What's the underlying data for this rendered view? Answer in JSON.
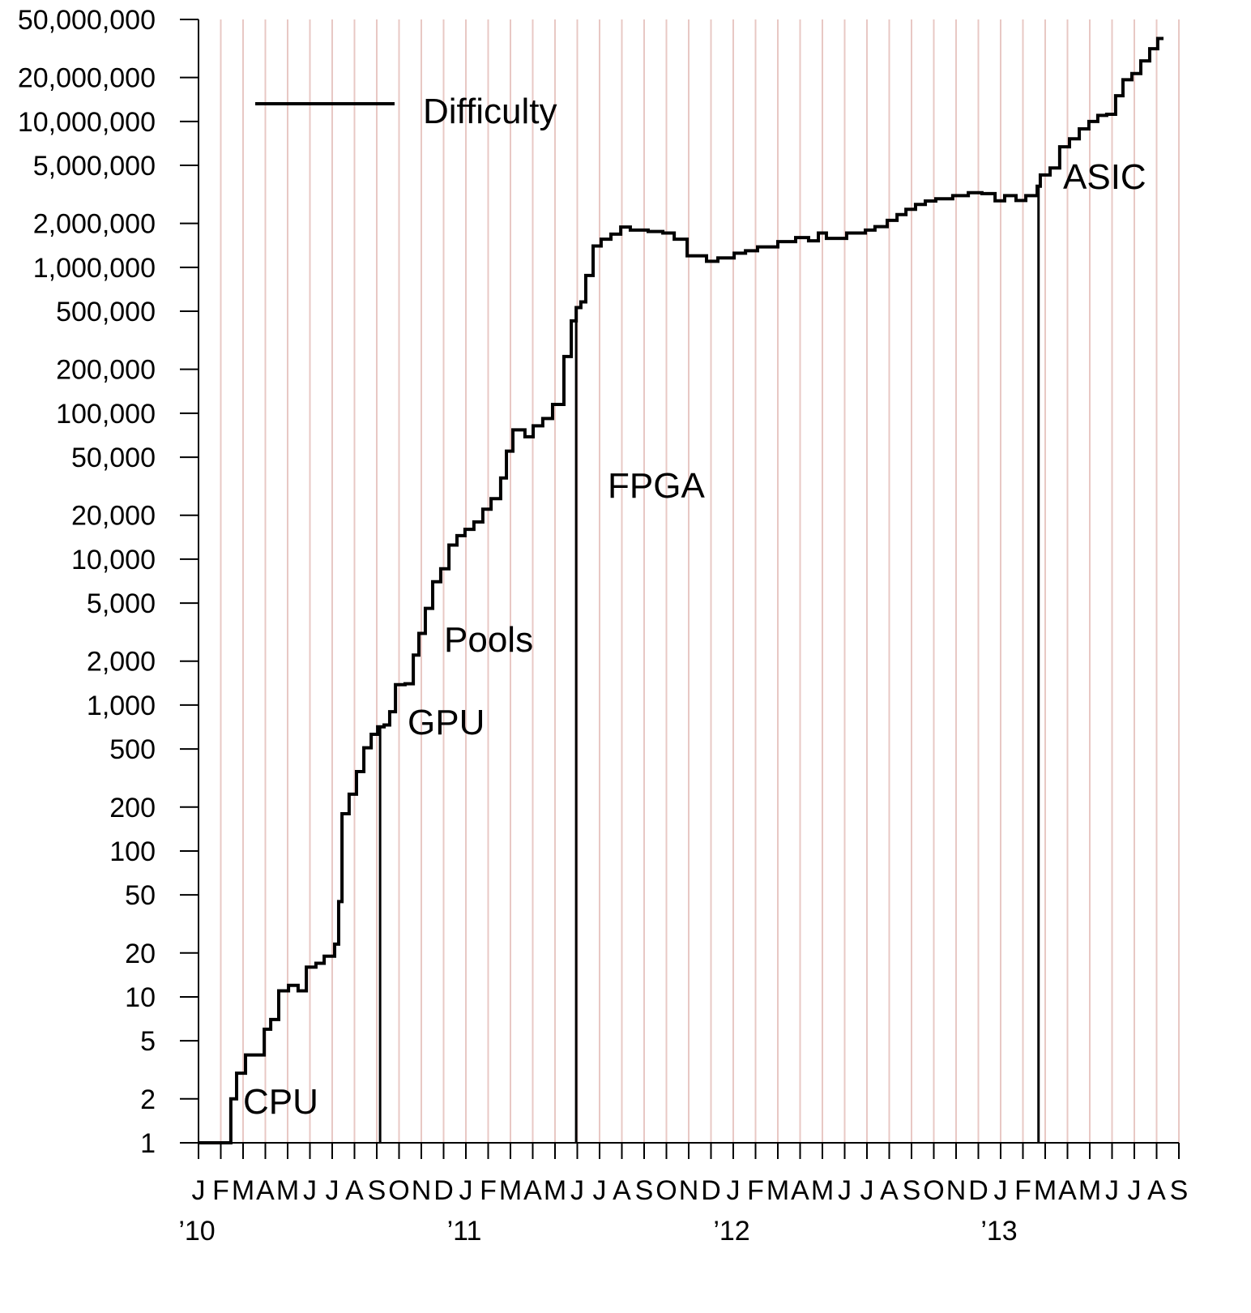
{
  "chart_data": {
    "type": "line",
    "step": "post",
    "log_y": true,
    "grid": true,
    "legend": "upper left",
    "xlim": [
      0,
      44
    ],
    "ylim": [
      1,
      50000000
    ],
    "yticks": [
      1,
      2,
      5,
      10,
      20,
      50,
      100,
      200,
      500,
      {
        "value": 1000,
        "label": "1,000"
      },
      {
        "value": 2000,
        "label": "2,000"
      },
      {
        "value": 5000,
        "label": "5,000"
      },
      {
        "value": 10000,
        "label": "10,000"
      },
      {
        "value": 20000,
        "label": "20,000"
      },
      {
        "value": 50000,
        "label": "50,000"
      },
      {
        "value": 100000,
        "label": "100,000"
      },
      {
        "value": 200000,
        "label": "200,000"
      },
      {
        "value": 500000,
        "label": "500,000"
      },
      {
        "value": 1000000,
        "label": "1,000,000"
      },
      {
        "value": 2000000,
        "label": "2,000,000"
      },
      {
        "value": 5000000,
        "label": "5,000,000"
      },
      {
        "value": 10000000,
        "label": "10,000,000"
      },
      {
        "value": 20000000,
        "label": "20,000,000"
      },
      {
        "value": 50000000,
        "label": "50,000,000"
      }
    ],
    "xticks": [
      {
        "value": 0,
        "label": "J"
      },
      {
        "value": 1,
        "label": "F"
      },
      {
        "value": 2,
        "label": "M"
      },
      {
        "value": 3,
        "label": "A"
      },
      {
        "value": 4,
        "label": "M"
      },
      {
        "value": 5,
        "label": "J"
      },
      {
        "value": 6,
        "label": "J"
      },
      {
        "value": 7,
        "label": "A"
      },
      {
        "value": 8,
        "label": "S"
      },
      {
        "value": 9,
        "label": "O"
      },
      {
        "value": 10,
        "label": "N"
      },
      {
        "value": 11,
        "label": "D"
      },
      {
        "value": 12,
        "label": "J"
      },
      {
        "value": 13,
        "label": "F"
      },
      {
        "value": 14,
        "label": "M"
      },
      {
        "value": 15,
        "label": "A"
      },
      {
        "value": 16,
        "label": "M"
      },
      {
        "value": 17,
        "label": "J"
      },
      {
        "value": 18,
        "label": "J"
      },
      {
        "value": 19,
        "label": "A"
      },
      {
        "value": 20,
        "label": "S"
      },
      {
        "value": 21,
        "label": "O"
      },
      {
        "value": 22,
        "label": "N"
      },
      {
        "value": 23,
        "label": "D"
      },
      {
        "value": 24,
        "label": "J"
      },
      {
        "value": 25,
        "label": "F"
      },
      {
        "value": 26,
        "label": "M"
      },
      {
        "value": 27,
        "label": "A"
      },
      {
        "value": 28,
        "label": "M"
      },
      {
        "value": 29,
        "label": "J"
      },
      {
        "value": 30,
        "label": "J"
      },
      {
        "value": 31,
        "label": "A"
      },
      {
        "value": 32,
        "label": "S"
      },
      {
        "value": 33,
        "label": "O"
      },
      {
        "value": 34,
        "label": "N"
      },
      {
        "value": 35,
        "label": "D"
      },
      {
        "value": 36,
        "label": "J"
      },
      {
        "value": 37,
        "label": "F"
      },
      {
        "value": 38,
        "label": "M"
      },
      {
        "value": 39,
        "label": "A"
      },
      {
        "value": 40,
        "label": "M"
      },
      {
        "value": 41,
        "label": "J"
      },
      {
        "value": 42,
        "label": "J"
      },
      {
        "value": 43,
        "label": "A"
      },
      {
        "value": 44,
        "label": "S"
      }
    ],
    "year_labels": [
      {
        "value": 0,
        "label": "’10"
      },
      {
        "value": 12,
        "label": "’11"
      },
      {
        "value": 24,
        "label": "’12"
      },
      {
        "value": 36,
        "label": "’13"
      }
    ],
    "annotations": [
      "CPU",
      "GPU",
      "Pools",
      "FPGA",
      "ASIC"
    ],
    "era_lines": [
      8.15,
      16.95,
      37.7
    ],
    "x": [
      0,
      1.45,
      1.71,
      2.11,
      2.95,
      3.24,
      3.6,
      4.04,
      4.47,
      4.84,
      5.27,
      5.64,
      6.11,
      6.29,
      6.44,
      6.76,
      7.09,
      7.42,
      7.75,
      8.04,
      8.33,
      8.58,
      8.84,
      9.27,
      9.64,
      9.89,
      10.18,
      10.51,
      10.87,
      11.24,
      11.6,
      11.96,
      12.36,
      12.76,
      13.13,
      13.56,
      13.82,
      14.11,
      14.65,
      15.02,
      15.45,
      15.89,
      16.4,
      16.73,
      16.95,
      17.16,
      17.38,
      17.71,
      18.07,
      18.51,
      18.95,
      19.38,
      20.18,
      20.84,
      21.35,
      21.93,
      22.8,
      23.31,
      24.04,
      24.55,
      25.09,
      26,
      26.8,
      27.38,
      27.82,
      28.18,
      29.09,
      29.93,
      30.36,
      30.91,
      31.35,
      31.75,
      32.18,
      32.62,
      33.09,
      33.85,
      34.55,
      35.16,
      35.75,
      36.18,
      36.69,
      37.13,
      37.64,
      37.78,
      38.22,
      38.65,
      39.09,
      39.53,
      39.96,
      40.36,
      40.76,
      41.16,
      41.49,
      41.89,
      42.29,
      42.69,
      43.05,
      43.31
    ],
    "series": [
      {
        "name": "Difficulty",
        "color": "#000000",
        "values": [
          1,
          2,
          3,
          4,
          6,
          7,
          11,
          12,
          11,
          16,
          17,
          19,
          23,
          45,
          180,
          245,
          350,
          510,
          630,
          710,
          730,
          900,
          1380,
          1400,
          2200,
          3100,
          4600,
          7000,
          8600,
          12500,
          14500,
          16000,
          18000,
          22000,
          26000,
          36000,
          55000,
          77000,
          69000,
          82000,
          92000,
          115000,
          245000,
          430000,
          530000,
          580000,
          880000,
          1400000,
          1560000,
          1690000,
          1890000,
          1800000,
          1760000,
          1720000,
          1560000,
          1200000,
          1100000,
          1160000,
          1250000,
          1300000,
          1380000,
          1500000,
          1600000,
          1520000,
          1720000,
          1580000,
          1720000,
          1800000,
          1900000,
          2100000,
          2300000,
          2500000,
          2700000,
          2850000,
          2950000,
          3100000,
          3250000,
          3200000,
          2860000,
          3100000,
          2870000,
          3100000,
          3600000,
          4300000,
          4800000,
          6700000,
          7600000,
          8900000,
          10000000,
          11000000,
          11200000,
          15000000,
          19300000,
          21300000,
          26000000,
          31500000,
          37000000,
          37000000
        ]
      }
    ]
  }
}
